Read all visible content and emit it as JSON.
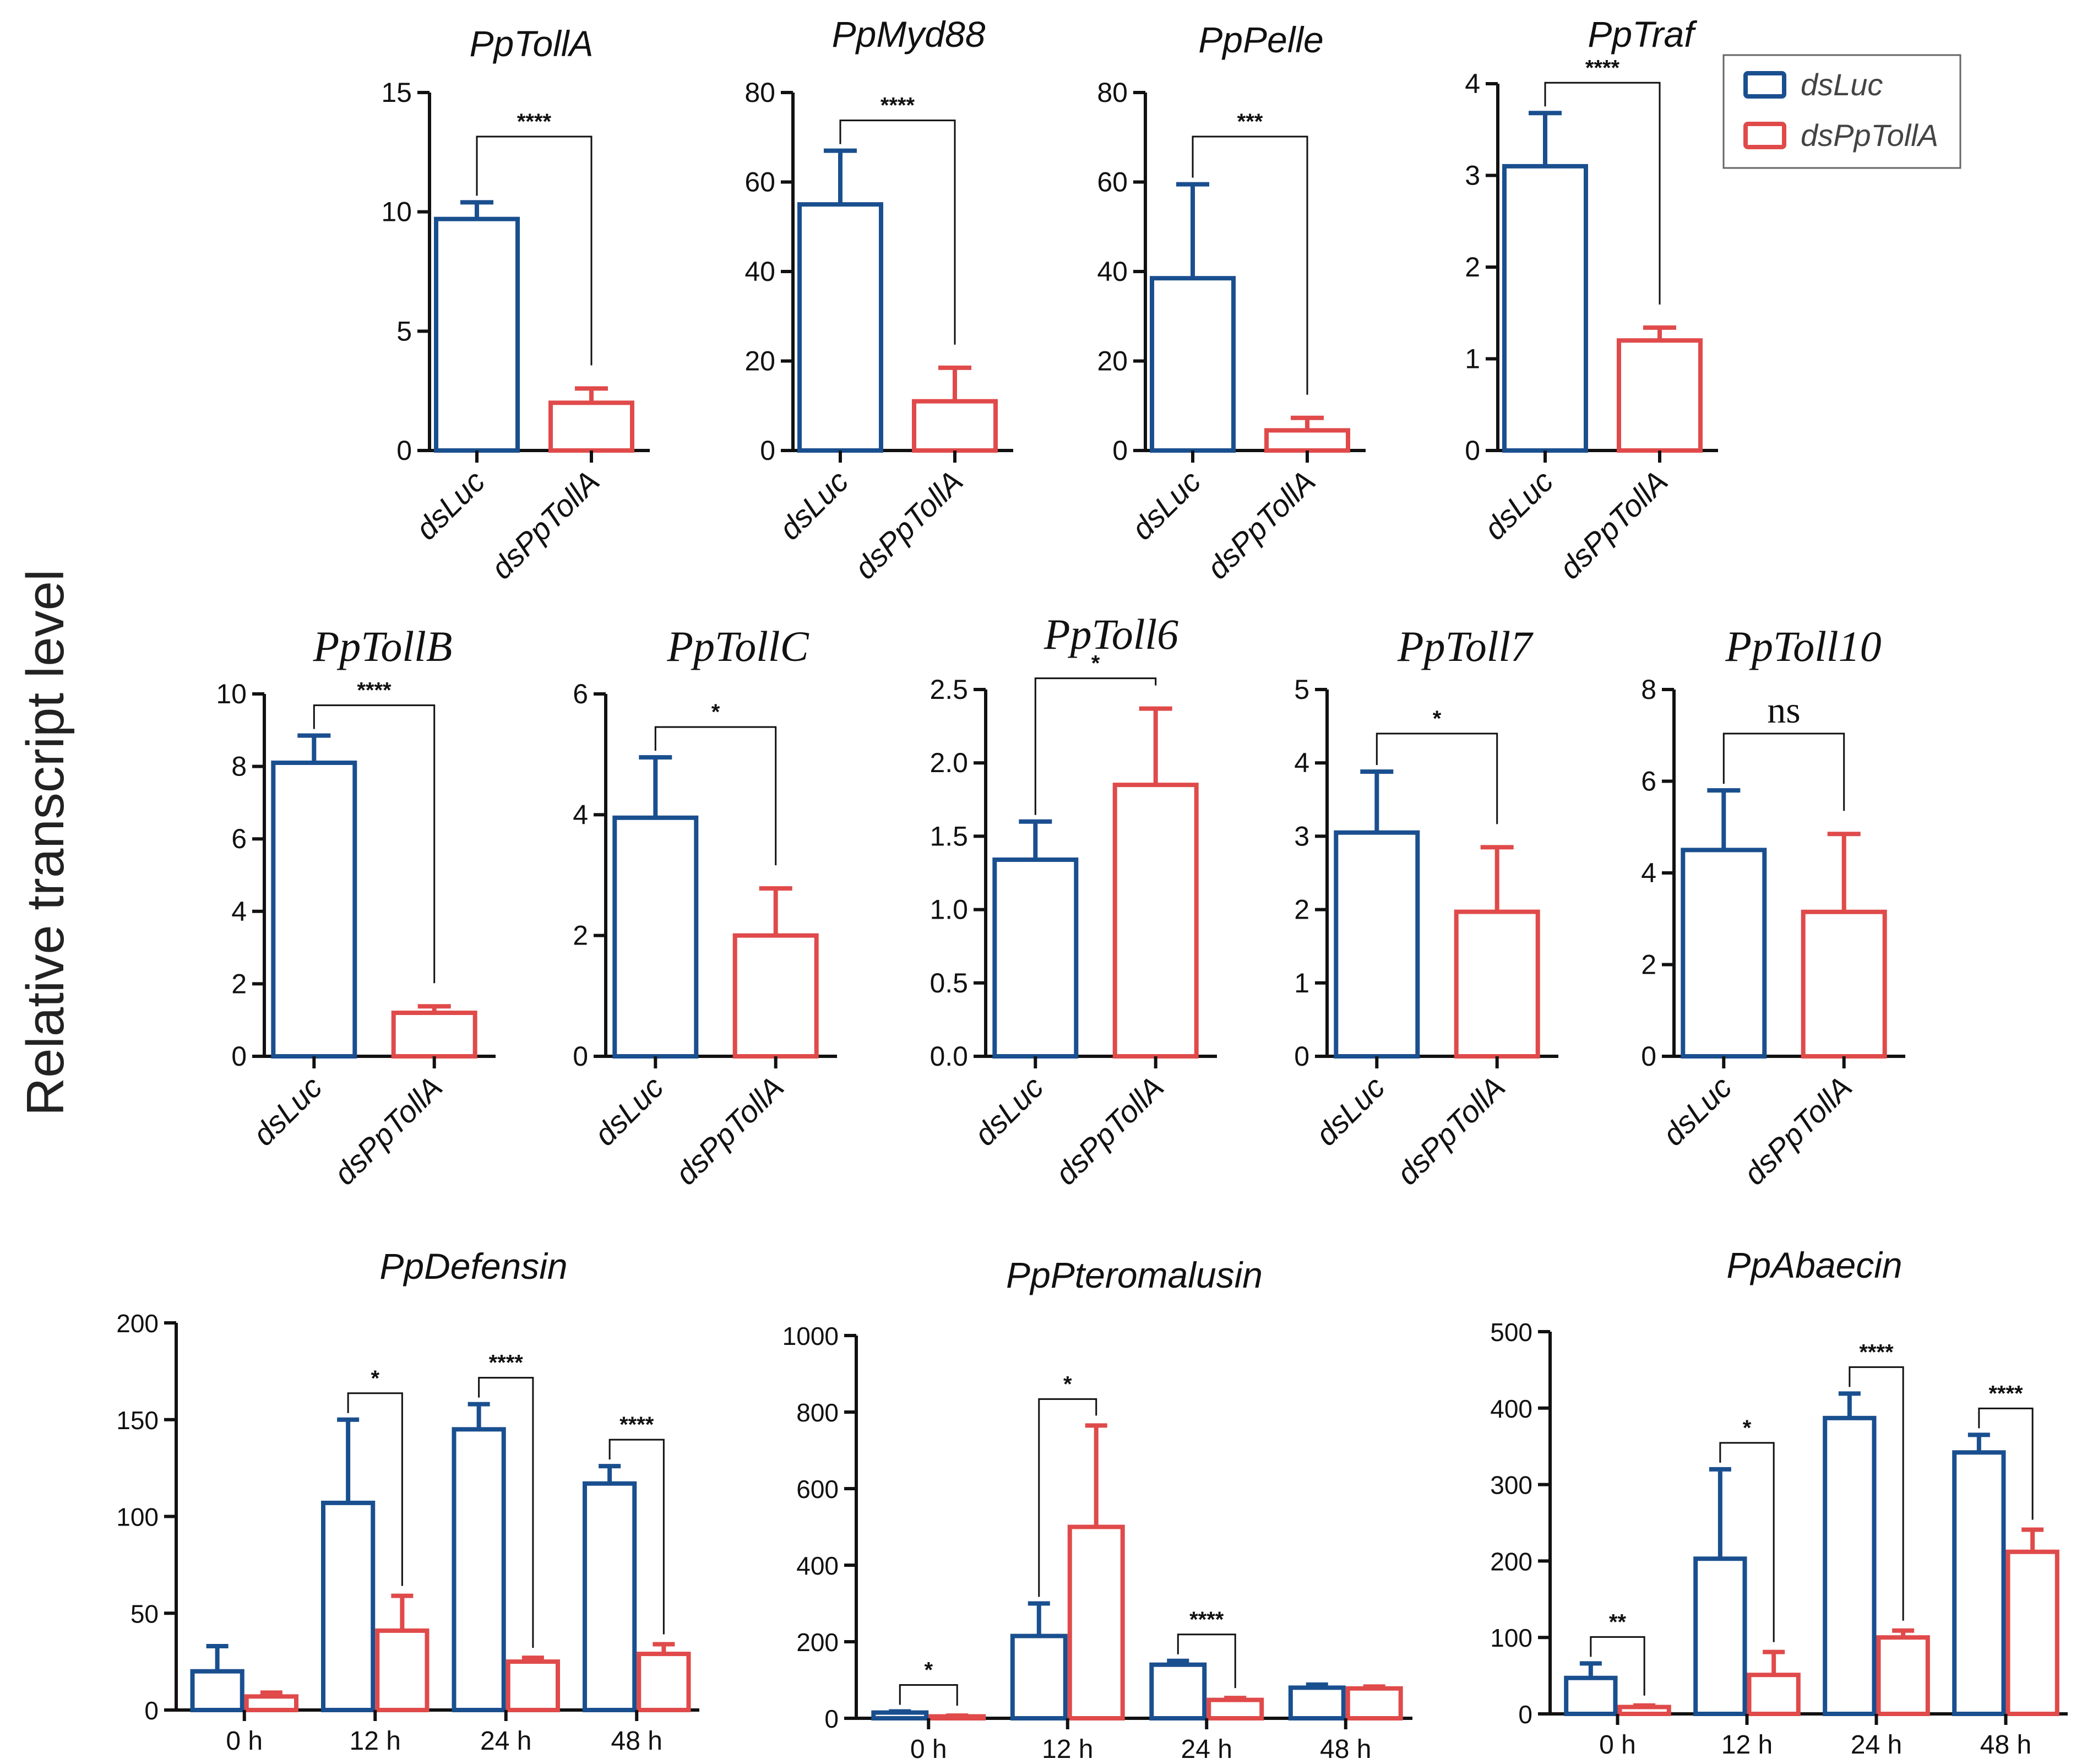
{
  "figure": {
    "ylabel": "Relative transcript level",
    "colors": {
      "dsLuc": "#1a4f8f",
      "dsPpTollA": "#e04a4a",
      "axis": "#111111"
    },
    "legend": [
      {
        "key": "dsLuc",
        "label": "dsLuc"
      },
      {
        "key": "dsPpTollA",
        "label": "dsPpTollA"
      }
    ]
  },
  "chart_data": [
    {
      "type": "bar",
      "title": "PpTollA",
      "title_font": "sans",
      "categories": [
        "dsLuc",
        "dsPpTollA"
      ],
      "values": [
        9.7,
        2.0
      ],
      "errors": [
        0.7,
        0.6
      ],
      "ylim": [
        0,
        15
      ],
      "yticks": [
        "0",
        "5",
        "10",
        "15"
      ],
      "significance": "****"
    },
    {
      "type": "bar",
      "title": "PpMyd88",
      "title_font": "sans",
      "categories": [
        "dsLuc",
        "dsPpTollA"
      ],
      "values": [
        55,
        11
      ],
      "errors": [
        12,
        7.5
      ],
      "ylim": [
        0,
        80
      ],
      "yticks": [
        "0",
        "20",
        "40",
        "60",
        "80"
      ],
      "significance": "****"
    },
    {
      "type": "bar",
      "title": "PpPelle",
      "title_font": "sans",
      "categories": [
        "dsLuc",
        "dsPpTollA"
      ],
      "values": [
        38.5,
        4.5
      ],
      "errors": [
        21,
        2.8
      ],
      "ylim": [
        0,
        80
      ],
      "yticks": [
        "0",
        "20",
        "40",
        "60",
        "80"
      ],
      "significance": "***"
    },
    {
      "type": "bar",
      "title": "PpTraf",
      "title_font": "sans",
      "categories": [
        "dsLuc",
        "dsPpTollA"
      ],
      "values": [
        3.1,
        1.2
      ],
      "errors": [
        0.58,
        0.14
      ],
      "ylim": [
        0,
        4
      ],
      "yticks": [
        "0",
        "1",
        "2",
        "3",
        "4"
      ],
      "significance": "****"
    },
    {
      "type": "bar",
      "title": "PpTollB",
      "title_font": "serif",
      "categories": [
        "dsLuc",
        "dsPpTollA"
      ],
      "values": [
        8.1,
        1.2
      ],
      "errors": [
        0.75,
        0.18
      ],
      "ylim": [
        0,
        10
      ],
      "yticks": [
        "0",
        "2",
        "4",
        "6",
        "8",
        "10"
      ],
      "significance": "****"
    },
    {
      "type": "bar",
      "title": "PpTollC",
      "title_font": "serif",
      "categories": [
        "dsLuc",
        "dsPpTollA"
      ],
      "values": [
        3.95,
        2.0
      ],
      "errors": [
        1.0,
        0.78
      ],
      "ylim": [
        0,
        6
      ],
      "yticks": [
        "0",
        "2",
        "4",
        "6"
      ],
      "significance": "*"
    },
    {
      "type": "bar",
      "title": "PpToll6",
      "title_font": "serif",
      "categories": [
        "dsLuc",
        "dsPpTollA"
      ],
      "values": [
        1.34,
        1.85
      ],
      "errors": [
        0.26,
        0.52
      ],
      "ylim": [
        0,
        2.5
      ],
      "yticks": [
        "0.0",
        "0.5",
        "1.0",
        "1.5",
        "2.0",
        "2.5"
      ],
      "significance": "*"
    },
    {
      "type": "bar",
      "title": "PpToll7",
      "title_font": "serif",
      "categories": [
        "dsLuc",
        "dsPpTollA"
      ],
      "values": [
        3.05,
        1.97
      ],
      "errors": [
        0.83,
        0.88
      ],
      "ylim": [
        0,
        5
      ],
      "yticks": [
        "0",
        "1",
        "2",
        "3",
        "4",
        "5"
      ],
      "significance": "*"
    },
    {
      "type": "bar",
      "title": "PpToll10",
      "title_font": "serif",
      "categories": [
        "dsLuc",
        "dsPpTollA"
      ],
      "values": [
        4.5,
        3.15
      ],
      "errors": [
        1.3,
        1.7
      ],
      "ylim": [
        0,
        8
      ],
      "yticks": [
        "0",
        "2",
        "4",
        "6",
        "8"
      ],
      "significance": "ns"
    },
    {
      "type": "bar",
      "title": "PpDefensin",
      "title_font": "sans",
      "categories": [
        "0 h",
        "12 h",
        "24 h",
        "48 h"
      ],
      "series": [
        {
          "name": "dsLuc",
          "values": [
            20,
            107,
            145,
            117
          ],
          "errors": [
            13,
            43,
            13,
            9
          ]
        },
        {
          "name": "dsPpTollA",
          "values": [
            7,
            41,
            25,
            29
          ],
          "errors": [
            2,
            18,
            2,
            5
          ]
        }
      ],
      "ylim": [
        0,
        200
      ],
      "yticks": [
        "0",
        "50",
        "100",
        "150",
        "200"
      ],
      "significance": [
        "",
        "*",
        "****",
        "****"
      ]
    },
    {
      "type": "bar",
      "title": "PpPteromalusin",
      "title_font": "sans",
      "categories": [
        "0 h",
        "12 h",
        "24 h",
        "48 h"
      ],
      "series": [
        {
          "name": "dsLuc",
          "values": [
            15,
            215,
            140,
            80
          ],
          "errors": [
            3,
            85,
            10,
            8
          ]
        },
        {
          "name": "dsPpTollA",
          "values": [
            5,
            500,
            48,
            78
          ],
          "errors": [
            2,
            265,
            5,
            5
          ]
        }
      ],
      "ylim": [
        0,
        1000
      ],
      "yticks": [
        "0",
        "200",
        "400",
        "600",
        "800",
        "1000"
      ],
      "significance": [
        "*",
        "*",
        "****",
        ""
      ]
    },
    {
      "type": "bar",
      "title": "PpAbaecin",
      "title_font": "sans",
      "categories": [
        "0 h",
        "12 h",
        "24 h",
        "48 h"
      ],
      "series": [
        {
          "name": "dsLuc",
          "values": [
            47,
            203,
            387,
            342
          ],
          "errors": [
            19,
            117,
            32,
            23
          ]
        },
        {
          "name": "dsPpTollA",
          "values": [
            9,
            51,
            100,
            212
          ],
          "errors": [
            2,
            30,
            9,
            29
          ]
        }
      ],
      "ylim": [
        0,
        500
      ],
      "yticks": [
        "0",
        "100",
        "200",
        "300",
        "400",
        "500"
      ],
      "significance": [
        "**",
        "*",
        "****",
        "****"
      ]
    }
  ]
}
